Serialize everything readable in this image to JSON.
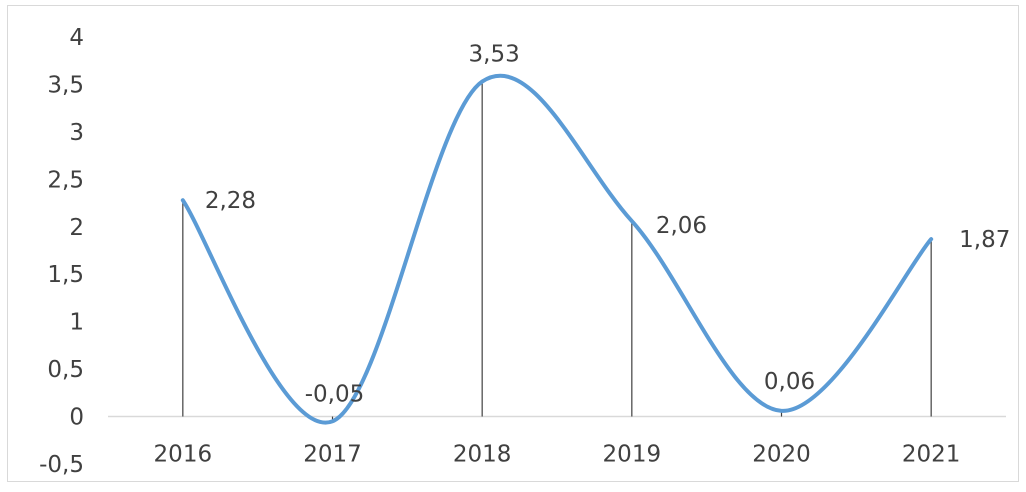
{
  "chart_data": {
    "type": "line",
    "smoothed": true,
    "drop_lines": true,
    "categories": [
      "2016",
      "2017",
      "2018",
      "2019",
      "2020",
      "2021"
    ],
    "series": [
      {
        "values": [
          2.28,
          -0.05,
          3.53,
          2.06,
          0.06,
          1.87
        ],
        "labels": [
          "2,28",
          "-0,05",
          "3,53",
          "2,06",
          "0,06",
          "1,87"
        ],
        "color": "#5b9bd5"
      }
    ],
    "ylim": [
      -0.5,
      4
    ],
    "y_ticks": [
      {
        "value": -0.5,
        "label": "-0,5"
      },
      {
        "value": 0,
        "label": "0"
      },
      {
        "value": 0.5,
        "label": "0,5"
      },
      {
        "value": 1,
        "label": "1"
      },
      {
        "value": 1.5,
        "label": "1,5"
      },
      {
        "value": 2,
        "label": "2"
      },
      {
        "value": 2.5,
        "label": "2,5"
      },
      {
        "value": 3,
        "label": "3"
      },
      {
        "value": 3.5,
        "label": "3,5"
      },
      {
        "value": 4,
        "label": "4"
      }
    ],
    "grid": false,
    "legend": "none",
    "colors": {
      "line": "#5b9bd5",
      "axis": "#d9d9d9",
      "drop_line": "#404040",
      "text": "#404040",
      "border": "#d9d9d9"
    }
  }
}
